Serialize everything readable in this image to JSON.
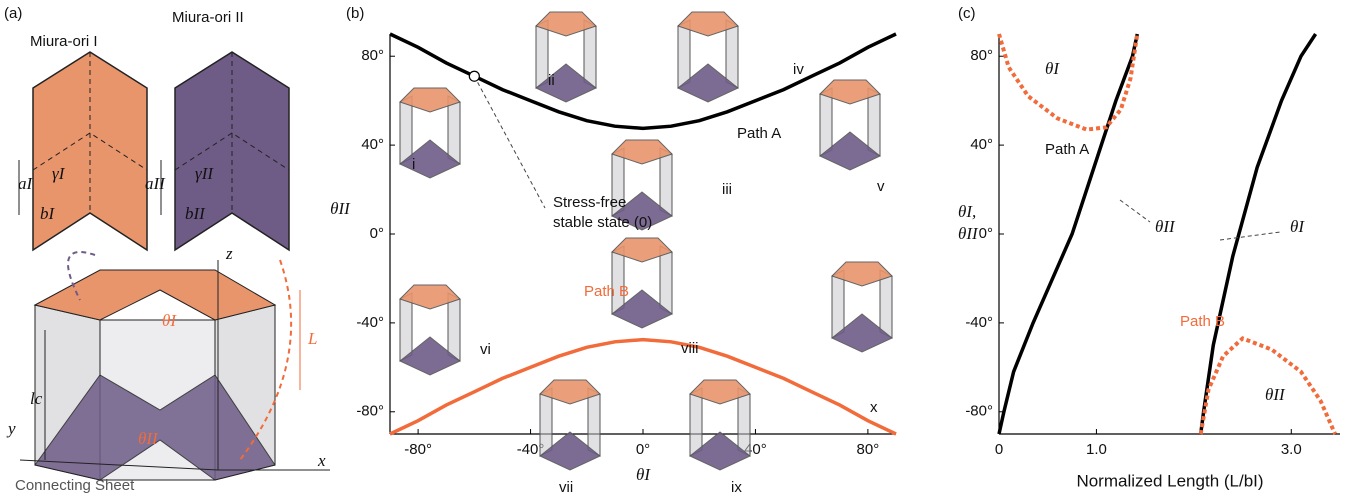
{
  "panels": {
    "a": "(a)",
    "b": "(b)",
    "c": "(c)"
  },
  "diagram": {
    "miura_1": "Miura-ori I",
    "miura_2": "Miura-ori II",
    "a1": "aI",
    "gamma1": "γI",
    "b1": "bI",
    "a2": "aII",
    "gamma2": "γII",
    "b2": "bII",
    "z": "z",
    "x": "x",
    "y": "y",
    "theta1": "θI",
    "L": "L",
    "lc": "lc",
    "theta2": "θII",
    "sheet": "Connecting Sheet"
  },
  "chart_data": [
    {
      "type": "line",
      "xlabel": "θI",
      "ylabel": "θII",
      "x": [
        -90,
        -80,
        -70,
        -60,
        -50,
        -40,
        -30,
        -20,
        -10,
        0,
        10,
        20,
        30,
        40,
        50,
        60,
        70,
        80,
        90
      ],
      "xlim": [
        -90,
        90
      ],
      "ylim": [
        -90,
        90
      ],
      "xticks": [
        {
          "value": -80,
          "label": "-80°"
        },
        {
          "value": -40,
          "label": "-40°"
        },
        {
          "value": 0,
          "label": "0°"
        },
        {
          "value": 40,
          "label": "40°"
        },
        {
          "value": 80,
          "label": "80°"
        }
      ],
      "yticks": [
        {
          "value": -80,
          "label": "-80°"
        },
        {
          "value": -40,
          "label": "-40°"
        },
        {
          "value": 0,
          "label": "0°"
        },
        {
          "value": 40,
          "label": "40°"
        },
        {
          "value": 80,
          "label": "80°"
        }
      ],
      "series": [
        {
          "name": "Path A",
          "color": "#000000",
          "values": [
            90,
            84,
            77,
            71,
            65,
            60,
            55,
            51,
            48.5,
            47.5,
            48.5,
            51,
            55,
            60,
            65,
            71,
            77,
            84,
            90
          ]
        },
        {
          "name": "Path B",
          "color": "#f26b3a",
          "values": [
            -90,
            -84,
            -77,
            -71,
            -65,
            -60,
            -55,
            -51,
            -48.5,
            -47.5,
            -48.5,
            -51,
            -55,
            -60,
            -65,
            -71,
            -77,
            -84,
            -90
          ]
        }
      ],
      "stable_state": {
        "label": [
          "Stress-free",
          "stable state (0)"
        ],
        "x": -60,
        "y": 71
      },
      "states": [
        "i",
        "ii",
        "iii",
        "iv",
        "v",
        "vi",
        "vii",
        "viii",
        "ix",
        "x"
      ]
    },
    {
      "type": "line",
      "xlabel": "Normalized Length (L/bI)",
      "ylabel": [
        "θI,",
        "θII"
      ],
      "xlim": [
        0,
        3.5
      ],
      "ylim": [
        -90,
        90
      ],
      "xticks": [
        0,
        {
          "value": 1,
          "label": "1.0"
        },
        {
          "value": 3,
          "label": "3.0"
        }
      ],
      "yticks": [
        {
          "value": -80,
          "label": "-80°"
        },
        {
          "value": -40,
          "label": "-40°"
        },
        {
          "value": 0,
          "label": "0°"
        },
        {
          "value": 40,
          "label": "40°"
        },
        {
          "value": 80,
          "label": "80°"
        }
      ],
      "path_labels": [
        "Path A",
        "Path B"
      ],
      "series": [
        {
          "name": "θI",
          "color": "#000000",
          "style": "solid",
          "x": [
            0,
            0.05,
            0.15,
            0.35,
            0.55,
            0.75,
            0.9,
            1.05,
            1.2,
            1.37,
            1.42
          ],
          "values": [
            -90,
            -80,
            -62,
            -40,
            -20,
            0,
            20,
            40,
            60,
            80,
            90
          ]
        },
        {
          "name": "θII",
          "color": "#f26b3a",
          "style": "dashed",
          "x": [
            0,
            0.1,
            0.3,
            0.6,
            0.9,
            1.1,
            1.25,
            1.35,
            1.42
          ],
          "values": [
            90,
            75,
            62,
            52,
            47,
            48,
            56,
            70,
            90
          ]
        },
        {
          "name": "θI",
          "color": "#000000",
          "style": "solid",
          "x": [
            2.07,
            2.1,
            2.2,
            2.4,
            2.65,
            2.9,
            3.1,
            3.25
          ],
          "values": [
            -90,
            -80,
            -50,
            -10,
            30,
            60,
            80,
            90
          ]
        },
        {
          "name": "θII",
          "color": "#f26b3a",
          "style": "dashed",
          "x": [
            2.07,
            2.15,
            2.3,
            2.5,
            2.8,
            3.1,
            3.3,
            3.45
          ],
          "values": [
            -90,
            -70,
            -55,
            -47,
            -52,
            -62,
            -75,
            -90
          ]
        }
      ]
    }
  ]
}
